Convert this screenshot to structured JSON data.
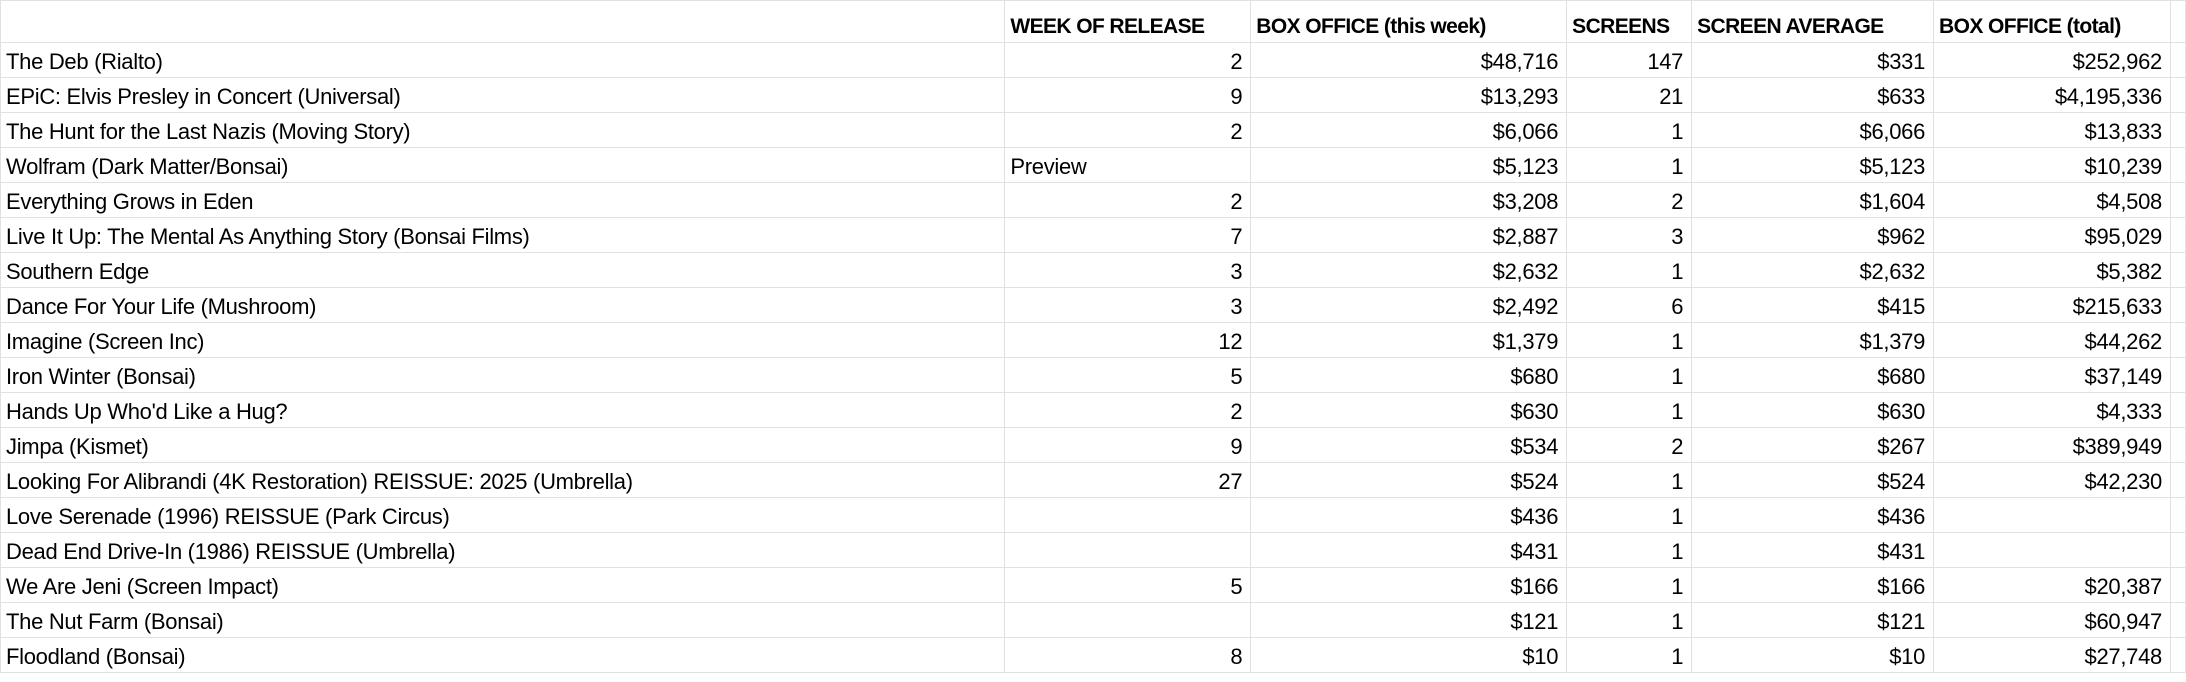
{
  "sheet": {
    "columns": [
      "",
      "WEEK OF RELEASE",
      "BOX OFFICE (this week)",
      "SCREENS",
      "SCREEN AVERAGE",
      "BOX OFFICE (total)"
    ],
    "rows": [
      [
        "The Deb (Rialto)",
        "2",
        "$48,716",
        "147",
        "$331",
        "$252,962"
      ],
      [
        "EPiC: Elvis Presley in Concert (Universal)",
        "9",
        "$13,293",
        "21",
        "$633",
        "$4,195,336"
      ],
      [
        "The Hunt for the Last Nazis (Moving Story)",
        "2",
        "$6,066",
        "1",
        "$6,066",
        "$13,833"
      ],
      [
        "Wolfram (Dark Matter/Bonsai)",
        "Preview",
        "$5,123",
        "1",
        "$5,123",
        "$10,239"
      ],
      [
        "Everything Grows in Eden",
        "2",
        "$3,208",
        "2",
        "$1,604",
        "$4,508"
      ],
      [
        "Live It Up: The Mental As Anything Story (Bonsai Films)",
        "7",
        "$2,887",
        "3",
        "$962",
        "$95,029"
      ],
      [
        "Southern Edge",
        "3",
        "$2,632",
        "1",
        "$2,632",
        "$5,382"
      ],
      [
        "Dance For Your Life (Mushroom)",
        "3",
        "$2,492",
        "6",
        "$415",
        "$215,633"
      ],
      [
        "Imagine (Screen Inc)",
        "12",
        "$1,379",
        "1",
        "$1,379",
        "$44,262"
      ],
      [
        "Iron Winter (Bonsai)",
        "5",
        "$680",
        "1",
        "$680",
        "$37,149"
      ],
      [
        "Hands Up Who'd Like a Hug?",
        "2",
        "$630",
        "1",
        "$630",
        "$4,333"
      ],
      [
        "Jimpa (Kismet)",
        "9",
        "$534",
        "2",
        "$267",
        "$389,949"
      ],
      [
        "Looking For Alibrandi (4K Restoration) REISSUE: 2025 (Umbrella)",
        "27",
        "$524",
        "1",
        "$524",
        "$42,230"
      ],
      [
        "Love Serenade (1996) REISSUE (Park Circus)",
        "",
        "$436",
        "1",
        "$436",
        ""
      ],
      [
        "Dead End Drive-In (1986) REISSUE (Umbrella)",
        "",
        "$431",
        "1",
        "$431",
        ""
      ],
      [
        "We Are Jeni (Screen Impact)",
        "5",
        "$166",
        "1",
        "$166",
        "$20,387"
      ],
      [
        "The Nut Farm (Bonsai)",
        "",
        "$121",
        "1",
        "$121",
        "$60,947"
      ],
      [
        "Floodland (Bonsai)",
        "8",
        "$10",
        "1",
        "$10",
        "$27,748"
      ]
    ]
  }
}
